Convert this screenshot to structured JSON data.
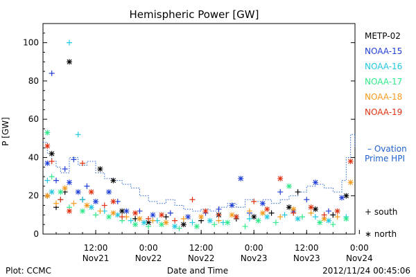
{
  "chart_data": {
    "type": "scatter",
    "title": "Hemispheric Power [GW]",
    "ylabel": "P [GW]",
    "xlabel": "Date and Time",
    "ylim": [
      0,
      110
    ],
    "xlim_hours": [
      0,
      71
    ],
    "yticks": [
      0,
      20,
      40,
      60,
      80,
      100
    ],
    "xticks": [
      {
        "h": 12,
        "time": "12:00",
        "date": "Nov21"
      },
      {
        "h": 24,
        "time": "0:00",
        "date": "Nov22"
      },
      {
        "h": 36,
        "time": "12:00",
        "date": "Nov22"
      },
      {
        "h": 48,
        "time": "0:00",
        "date": "Nov23"
      },
      {
        "h": 60,
        "time": "12:00",
        "date": "Nov23"
      },
      {
        "h": 72,
        "time": "0:00",
        "date": "Nov24"
      }
    ],
    "legend": [
      {
        "name": "METP-02",
        "color": "#000000"
      },
      {
        "name": "NOAA-15",
        "color": "#1f3fd8"
      },
      {
        "name": "NOAA-16",
        "color": "#22c8e0"
      },
      {
        "name": "NOAA-17",
        "color": "#2fe88a"
      },
      {
        "name": "NOAA-18",
        "color": "#f59a1c"
      },
      {
        "name": "NOAA-19",
        "color": "#e03010"
      }
    ],
    "legend_placement": "right",
    "ovation": {
      "label_line1": "– Ovation",
      "label_line2": "Prime HPI",
      "color": "#1f5fd0",
      "x": [
        0,
        1,
        2,
        3,
        4,
        6,
        8,
        10,
        12,
        14,
        16,
        18,
        20,
        22,
        24,
        26,
        28,
        30,
        32,
        34,
        36,
        38,
        40,
        42,
        44,
        46,
        48,
        50,
        52,
        54,
        56,
        58,
        60,
        62,
        64,
        66,
        68,
        69,
        70,
        71
      ],
      "y": [
        48,
        42,
        38,
        35,
        32,
        40,
        36,
        38,
        32,
        29,
        28,
        26,
        24,
        20,
        17,
        16,
        18,
        15,
        13,
        12,
        13,
        12,
        14,
        16,
        14,
        18,
        17,
        18,
        16,
        18,
        20,
        22,
        25,
        26,
        24,
        22,
        28,
        40,
        52,
        45
      ]
    },
    "symbols": [
      {
        "label": "+ south"
      },
      {
        "label": "∗ north"
      }
    ],
    "series": [
      {
        "name": "METP-02",
        "points": [
          [
            1,
            20,
            "s"
          ],
          [
            2,
            42,
            "n"
          ],
          [
            3,
            14,
            "s"
          ],
          [
            5,
            22,
            "s"
          ],
          [
            6,
            90,
            "n"
          ],
          [
            9,
            18,
            "s"
          ],
          [
            13,
            34,
            "n"
          ],
          [
            16,
            28,
            "n"
          ],
          [
            18,
            12,
            "n"
          ],
          [
            21,
            8,
            "s"
          ],
          [
            24,
            6,
            "n"
          ],
          [
            28,
            9,
            "s"
          ],
          [
            32,
            5,
            "n"
          ],
          [
            36,
            7,
            "s"
          ],
          [
            40,
            10,
            "n"
          ],
          [
            44,
            8,
            "s"
          ],
          [
            48,
            9,
            "n"
          ],
          [
            52,
            11,
            "s"
          ],
          [
            56,
            14,
            "n"
          ],
          [
            58,
            22,
            "s"
          ],
          [
            62,
            13,
            "n"
          ],
          [
            66,
            10,
            "s"
          ],
          [
            69,
            20,
            "n"
          ]
        ]
      },
      {
        "name": "NOAA-15",
        "points": [
          [
            1,
            37,
            "n"
          ],
          [
            2,
            84,
            "s"
          ],
          [
            3,
            28,
            "s"
          ],
          [
            5,
            34,
            "s"
          ],
          [
            6,
            27,
            "n"
          ],
          [
            7,
            39,
            "s"
          ],
          [
            8,
            22,
            "n"
          ],
          [
            10,
            25,
            "s"
          ],
          [
            12,
            17,
            "n"
          ],
          [
            15,
            22,
            "n"
          ],
          [
            17,
            17,
            "s"
          ],
          [
            19,
            12,
            "n"
          ],
          [
            22,
            12,
            "s"
          ],
          [
            25,
            10,
            "n"
          ],
          [
            29,
            11,
            "s"
          ],
          [
            33,
            9,
            "n"
          ],
          [
            37,
            11,
            "s"
          ],
          [
            40,
            13,
            "s"
          ],
          [
            43,
            15,
            "n"
          ],
          [
            45,
            29,
            "n"
          ],
          [
            47,
            11,
            "s"
          ],
          [
            50,
            16,
            "n"
          ],
          [
            54,
            22,
            "s"
          ],
          [
            57,
            12,
            "n"
          ],
          [
            60,
            18,
            "s"
          ],
          [
            62,
            27,
            "n"
          ],
          [
            65,
            12,
            "s"
          ],
          [
            68,
            19,
            "n"
          ]
        ]
      },
      {
        "name": "NOAA-16",
        "points": [
          [
            1,
            28,
            "s"
          ],
          [
            2,
            22,
            "n"
          ],
          [
            4,
            18,
            "s"
          ],
          [
            6,
            100,
            "s"
          ],
          [
            8,
            52,
            "s"
          ],
          [
            9,
            18,
            "s"
          ],
          [
            11,
            14,
            "n"
          ],
          [
            14,
            12,
            "s"
          ],
          [
            17,
            10,
            "n"
          ],
          [
            20,
            7,
            "s"
          ],
          [
            23,
            6,
            "n"
          ],
          [
            26,
            7,
            "s"
          ],
          [
            30,
            4,
            "n"
          ],
          [
            34,
            6,
            "s"
          ],
          [
            38,
            7,
            "n"
          ],
          [
            41,
            6,
            "s"
          ],
          [
            44,
            9,
            "n"
          ],
          [
            47,
            8,
            "s"
          ],
          [
            51,
            9,
            "n"
          ],
          [
            55,
            10,
            "s"
          ],
          [
            58,
            8,
            "n"
          ],
          [
            62,
            9,
            "s"
          ],
          [
            65,
            7,
            "n"
          ],
          [
            69,
            9,
            "s"
          ]
        ]
      },
      {
        "name": "NOAA-17",
        "points": [
          [
            1,
            53,
            "n"
          ],
          [
            2,
            30,
            "s"
          ],
          [
            4,
            22,
            "n"
          ],
          [
            6,
            14,
            "s"
          ],
          [
            9,
            12,
            "n"
          ],
          [
            12,
            10,
            "s"
          ],
          [
            15,
            9,
            "n"
          ],
          [
            18,
            7,
            "s"
          ],
          [
            21,
            5,
            "n"
          ],
          [
            24,
            4,
            "s"
          ],
          [
            27,
            5,
            "n"
          ],
          [
            31,
            3,
            "s"
          ],
          [
            35,
            4,
            "n"
          ],
          [
            39,
            5,
            "s"
          ],
          [
            42,
            6,
            "n"
          ],
          [
            46,
            4,
            "s"
          ],
          [
            49,
            7,
            "n"
          ],
          [
            53,
            6,
            "s"
          ],
          [
            56,
            25,
            "n"
          ],
          [
            59,
            9,
            "s"
          ],
          [
            63,
            6,
            "n"
          ],
          [
            66,
            5,
            "s"
          ],
          [
            69,
            8,
            "n"
          ]
        ]
      },
      {
        "name": "NOAA-18",
        "points": [
          [
            1,
            20,
            "n"
          ],
          [
            3,
            16,
            "s"
          ],
          [
            5,
            24,
            "n"
          ],
          [
            7,
            16,
            "s"
          ],
          [
            10,
            15,
            "n"
          ],
          [
            13,
            12,
            "s"
          ],
          [
            16,
            11,
            "n"
          ],
          [
            19,
            9,
            "s"
          ],
          [
            22,
            8,
            "n"
          ],
          [
            25,
            7,
            "s"
          ],
          [
            28,
            6,
            "n"
          ],
          [
            32,
            8,
            "s"
          ],
          [
            36,
            9,
            "n"
          ],
          [
            40,
            7,
            "s"
          ],
          [
            43,
            10,
            "n"
          ],
          [
            47,
            12,
            "s"
          ],
          [
            50,
            11,
            "n"
          ],
          [
            54,
            9,
            "s"
          ],
          [
            57,
            13,
            "n"
          ],
          [
            61,
            11,
            "s"
          ],
          [
            64,
            8,
            "n"
          ],
          [
            67,
            9,
            "s"
          ],
          [
            70,
            27,
            "n"
          ]
        ]
      },
      {
        "name": "NOAA-19",
        "points": [
          [
            1,
            46,
            "n"
          ],
          [
            2,
            38,
            "s"
          ],
          [
            4,
            18,
            "s"
          ],
          [
            6,
            12,
            "n"
          ],
          [
            9,
            37,
            "s"
          ],
          [
            11,
            22,
            "n"
          ],
          [
            14,
            15,
            "s"
          ],
          [
            16,
            17,
            "n"
          ],
          [
            18,
            9,
            "s"
          ],
          [
            21,
            11,
            "n"
          ],
          [
            24,
            8,
            "s"
          ],
          [
            27,
            10,
            "n"
          ],
          [
            30,
            7,
            "s"
          ],
          [
            34,
            18,
            "s"
          ],
          [
            37,
            12,
            "n"
          ],
          [
            40,
            10,
            "s"
          ],
          [
            44,
            9,
            "n"
          ],
          [
            48,
            17,
            "s"
          ],
          [
            51,
            13,
            "n"
          ],
          [
            54,
            29,
            "n"
          ],
          [
            57,
            11,
            "s"
          ],
          [
            61,
            14,
            "n"
          ],
          [
            64,
            10,
            "s"
          ],
          [
            67,
            12,
            "n"
          ],
          [
            70,
            38,
            "n"
          ]
        ]
      }
    ]
  },
  "footer": {
    "left": "Plot: CCMC",
    "center": "Date and Time",
    "right": "2012/11/24 00:45:06"
  }
}
